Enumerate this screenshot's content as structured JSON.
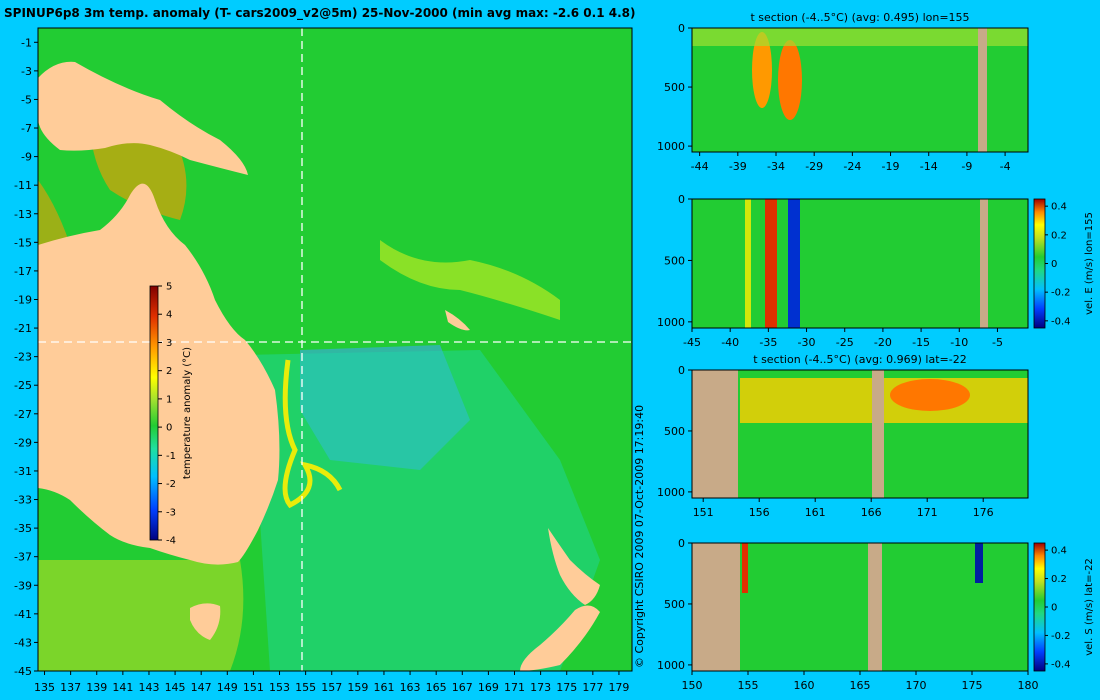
{
  "main_title": "SPINUP6p8 3m temp. anomaly (T- cars2009_v2@5m) 25-Nov-2000 (min avg max: -2.6 0.1 4.8)",
  "copyright": "© Copyright CSIRO 2009   07-Oct-2009 17:19:40",
  "colors": {
    "background": "#00ccff",
    "land": "#ffcc99",
    "section_land": "#c8aa88",
    "ocean_field": "#22cc33",
    "colormap": [
      "#000080",
      "#0040ff",
      "#00c0ff",
      "#20e0a0",
      "#22cc33",
      "#a0e030",
      "#ffff00",
      "#ff9900",
      "#e03000",
      "#800000"
    ]
  },
  "chart_data": [
    {
      "id": "map",
      "type": "heatmap",
      "title": "SPINUP6p8 3m temp. anomaly (T- cars2009_v2@5m) 25-Nov-2000 (min avg max: -2.6 0.1 4.8)",
      "x_ticks": [
        "135",
        "137",
        "139",
        "141",
        "143",
        "145",
        "147",
        "149",
        "151",
        "153",
        "155",
        "157",
        "159",
        "161",
        "163",
        "165",
        "167",
        "169",
        "171",
        "173",
        "175",
        "177",
        "179"
      ],
      "y_ticks": [
        "-1",
        "-3",
        "-5",
        "-7",
        "-9",
        "-11",
        "-13",
        "-15",
        "-17",
        "-19",
        "-21",
        "-23",
        "-25",
        "-27",
        "-29",
        "-31",
        "-33",
        "-35",
        "-37",
        "-39",
        "-41",
        "-43",
        "-45"
      ],
      "xlim": [
        134.5,
        180
      ],
      "ylim": [
        -45,
        0
      ],
      "section_lon": 155,
      "section_lat": -22,
      "colorbar": {
        "label": "temperature anomaly (°C)",
        "ticks": [
          "5",
          "4",
          "3",
          "2",
          "1",
          "0",
          "-1",
          "-2",
          "-3",
          "-4"
        ],
        "range": [
          -4,
          5
        ]
      }
    },
    {
      "id": "t-section-lon",
      "type": "heatmap",
      "title": "t section (-4..5°C) (avg: 0.495) lon=155",
      "x_ticks": [
        "-44",
        "-39",
        "-34",
        "-29",
        "-24",
        "-19",
        "-14",
        "-9",
        "-4"
      ],
      "y_ticks": [
        "0",
        "500",
        "1000"
      ],
      "xlim": [
        -45,
        -1
      ],
      "ylim": [
        1050,
        0
      ]
    },
    {
      "id": "vel-e-section",
      "type": "heatmap",
      "title": "",
      "x_ticks": [
        "-45",
        "-40",
        "-35",
        "-30",
        "-25",
        "-20",
        "-15",
        "-10",
        "-5"
      ],
      "y_ticks": [
        "0",
        "500",
        "1000"
      ],
      "xlim": [
        -45,
        -1
      ],
      "ylim": [
        1050,
        0
      ],
      "colorbar": {
        "label": "vel. E (m/s) lon=155",
        "ticks": [
          "0.4",
          "0.2",
          "0",
          "-0.2",
          "-0.4"
        ],
        "range": [
          -0.45,
          0.45
        ]
      }
    },
    {
      "id": "t-section-lat",
      "type": "heatmap",
      "title": "t section (-4..5°C) (avg: 0.969) lat=-22",
      "x_ticks": [
        "151",
        "156",
        "161",
        "166",
        "171",
        "176"
      ],
      "y_ticks": [
        "0",
        "500",
        "1000"
      ],
      "xlim": [
        150,
        180
      ],
      "ylim": [
        1050,
        0
      ]
    },
    {
      "id": "vel-s-section",
      "type": "heatmap",
      "title": "",
      "x_ticks": [
        "150",
        "155",
        "160",
        "165",
        "170",
        "175",
        "180"
      ],
      "y_ticks": [
        "0",
        "500",
        "1000"
      ],
      "xlim": [
        150,
        180
      ],
      "ylim": [
        1050,
        0
      ],
      "colorbar": {
        "label": "vel. S (m/s) lat=-22",
        "ticks": [
          "0.4",
          "0.2",
          "0",
          "-0.2",
          "-0.4"
        ],
        "range": [
          -0.45,
          0.45
        ]
      }
    }
  ]
}
